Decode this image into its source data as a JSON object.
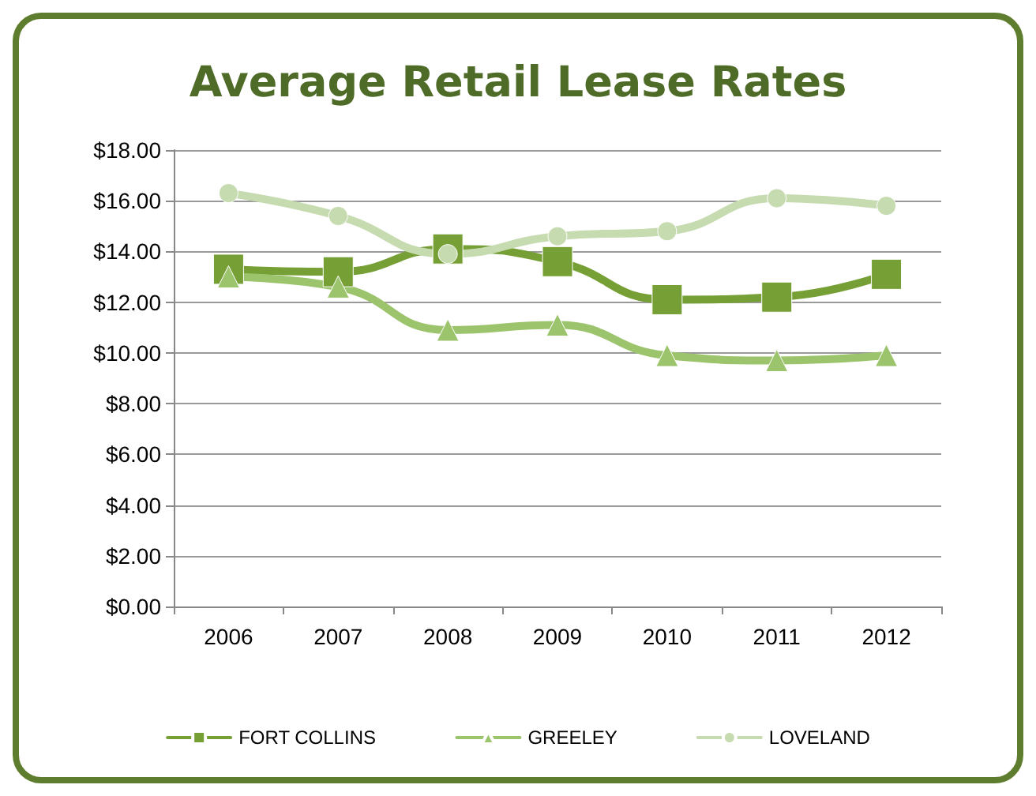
{
  "chart_data": {
    "type": "line",
    "title": "Average Retail Lease Rates",
    "categories": [
      "2006",
      "2007",
      "2008",
      "2009",
      "2010",
      "2011",
      "2012"
    ],
    "series": [
      {
        "name": "FORT COLLINS",
        "color": "#76a036",
        "marker": "square",
        "values": [
          13.3,
          13.2,
          14.1,
          13.6,
          12.1,
          12.2,
          13.1
        ]
      },
      {
        "name": "GREELEY",
        "color": "#9cc46c",
        "marker": "triangle",
        "values": [
          13.0,
          12.6,
          10.9,
          11.1,
          9.9,
          9.7,
          9.9
        ]
      },
      {
        "name": "LOVELAND",
        "color": "#c6dbb0",
        "marker": "circle",
        "values": [
          16.3,
          15.4,
          13.9,
          14.6,
          14.8,
          16.1,
          15.8
        ]
      }
    ],
    "ylim": [
      0,
      18
    ],
    "yticks": [
      {
        "value": 0,
        "label": "$0.00"
      },
      {
        "value": 2,
        "label": "$2.00"
      },
      {
        "value": 4,
        "label": "$4.00"
      },
      {
        "value": 6,
        "label": "$6.00"
      },
      {
        "value": 8,
        "label": "$8.00"
      },
      {
        "value": 10,
        "label": "$10.00"
      },
      {
        "value": 12,
        "label": "$12.00"
      },
      {
        "value": 14,
        "label": "$14.00"
      },
      {
        "value": 16,
        "label": "$16.00"
      },
      {
        "value": 18,
        "label": "$18.00"
      }
    ],
    "grid": "y",
    "legend": "bottom",
    "line_style": "solid"
  }
}
